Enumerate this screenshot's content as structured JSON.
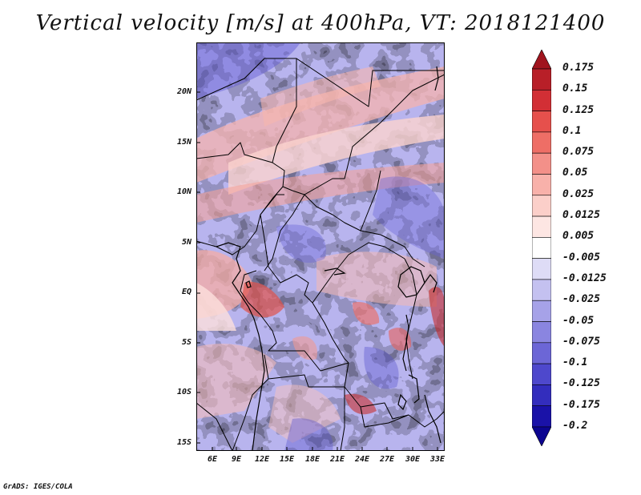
{
  "title": "Vertical velocity [m/s] at 400hPa, VT: 2018121400",
  "credit": "GrADS: IGES/COLA",
  "map": {
    "lat_ticks": [
      "20N",
      "15N",
      "10N",
      "5N",
      "EQ",
      "5S",
      "10S",
      "15S"
    ],
    "lon_ticks": [
      "6E",
      "9E",
      "12E",
      "15E",
      "18E",
      "21E",
      "24E",
      "27E",
      "30E",
      "33E"
    ]
  },
  "colorbar": {
    "labels": [
      "0.175",
      "0.15",
      "0.125",
      "0.1",
      "0.075",
      "0.05",
      "0.025",
      "0.0125",
      "0.005",
      "-0.005",
      "-0.0125",
      "-0.025",
      "-0.05",
      "-0.075",
      "-0.1",
      "-0.125",
      "-0.175",
      "-0.2"
    ],
    "colors": [
      "#a0141e",
      "#b81f28",
      "#d22f35",
      "#e6504c",
      "#ee6e66",
      "#f39089",
      "#f8b1aa",
      "#fbcfc9",
      "#fde6e3",
      "#ffffff",
      "#dedcf6",
      "#c4c1f0",
      "#a6a2e8",
      "#8a85e0",
      "#6c66d6",
      "#4e48cc",
      "#332dbd",
      "#1a12a8",
      "#0c0590"
    ]
  }
}
